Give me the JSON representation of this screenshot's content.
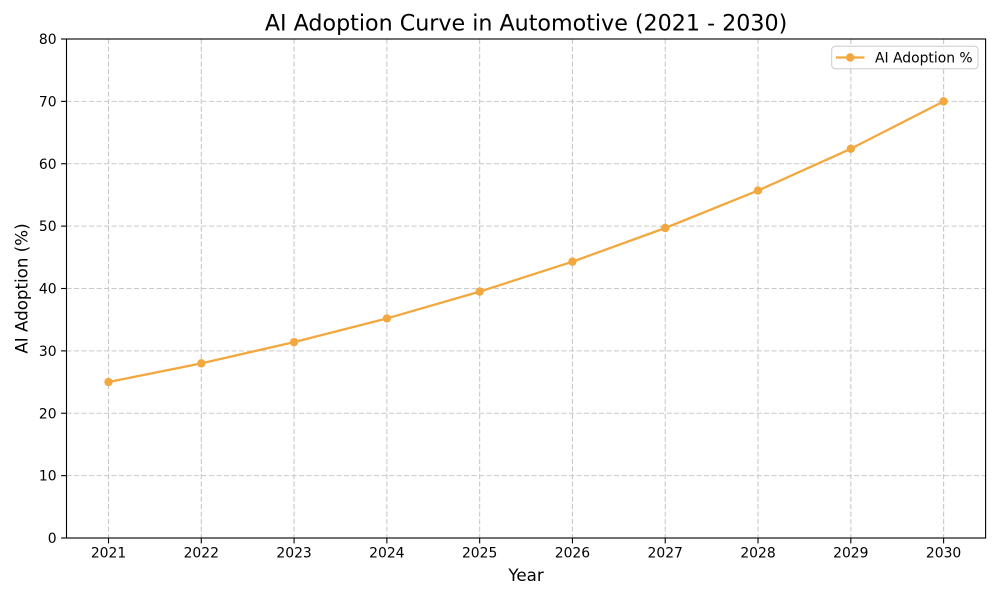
{
  "chart_data": {
    "type": "line",
    "title": "AI Adoption Curve in Automotive (2021 - 2030)",
    "xlabel": "Year",
    "ylabel": "AI Adoption (%)",
    "categories": [
      "2021",
      "2022",
      "2023",
      "2024",
      "2025",
      "2026",
      "2027",
      "2028",
      "2029",
      "2030"
    ],
    "series": [
      {
        "name": "AI Adoption %",
        "values": [
          25.0,
          28.0,
          31.4,
          35.2,
          39.5,
          44.3,
          49.7,
          55.7,
          62.4,
          70.0
        ],
        "color": "#F2A83E",
        "marker": "circle"
      }
    ],
    "ylim": [
      0,
      80
    ],
    "yticks": [
      0,
      10,
      20,
      30,
      40,
      50,
      60,
      70,
      80
    ],
    "grid": "dashed both",
    "legend_position": "upper right",
    "colors": {
      "series": "#F2A83E",
      "grid": "#c9c9c9",
      "axis": "#000000",
      "text": "#000000",
      "legend_border": "#cccccc",
      "background": "#ffffff"
    }
  }
}
